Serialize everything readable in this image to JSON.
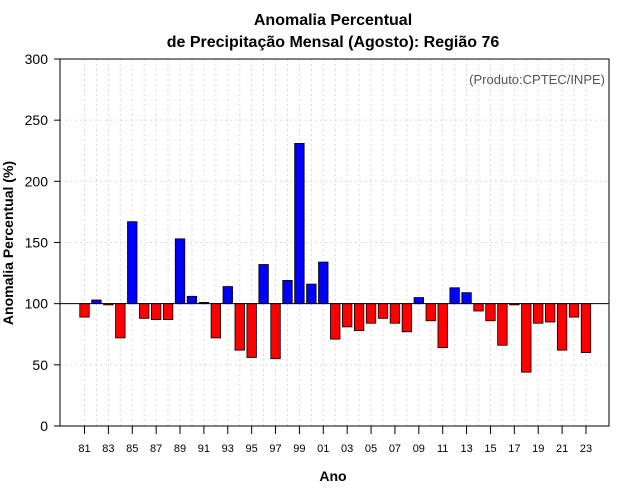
{
  "chart_data": {
    "type": "bar",
    "title": [
      "Anomalia Percentual",
      "de Precipitação Mensal (Agosto): Região 76"
    ],
    "credit": "(Produto:CPTEC/INPE)",
    "xlabel": "Ano",
    "ylabel": "Anomalia Percentual (%)",
    "ylim": [
      0,
      300
    ],
    "yticks": [
      0,
      50,
      100,
      150,
      200,
      250,
      300
    ],
    "baseline": 100,
    "grid": true,
    "colors": {
      "above": "#0000ff",
      "below": "#ff0000",
      "edge": "#000000",
      "grid": "#d9d9d9"
    },
    "categories": [
      "81",
      "82",
      "83",
      "84",
      "85",
      "86",
      "87",
      "88",
      "89",
      "90",
      "91",
      "92",
      "93",
      "94",
      "95",
      "96",
      "97",
      "98",
      "99",
      "00",
      "01",
      "02",
      "03",
      "04",
      "05",
      "06",
      "07",
      "08",
      "09",
      "10",
      "11",
      "12",
      "13",
      "14",
      "15",
      "16",
      "17",
      "18",
      "19",
      "20",
      "21",
      "22",
      "23"
    ],
    "tick_labels": [
      "81",
      "83",
      "85",
      "87",
      "89",
      "91",
      "93",
      "95",
      "97",
      "99",
      "01",
      "03",
      "05",
      "07",
      "09",
      "11",
      "13",
      "15",
      "17",
      "19",
      "21",
      "23"
    ],
    "values": [
      89,
      103,
      99,
      72,
      167,
      88,
      87,
      87,
      153,
      106,
      101,
      72,
      114,
      62,
      56,
      132,
      55,
      119,
      231,
      116,
      134,
      71,
      81,
      78,
      84,
      88,
      84,
      77,
      105,
      86,
      64,
      113,
      109,
      94,
      86,
      66,
      99,
      44,
      84,
      85,
      62,
      89,
      60
    ]
  }
}
